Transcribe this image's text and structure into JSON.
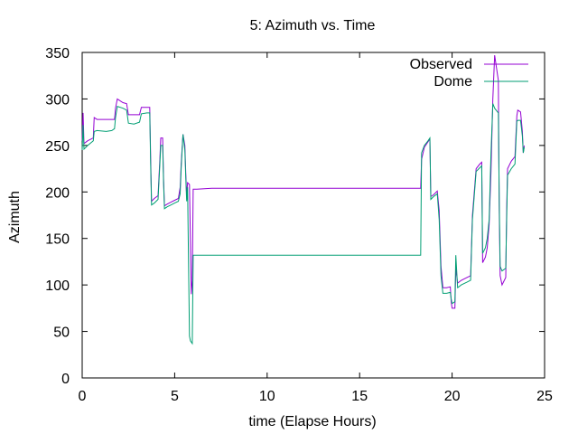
{
  "chart_data": {
    "type": "line",
    "title": "5: Azimuth vs. Time",
    "xlabel": "time (Elapse Hours)",
    "ylabel": "Azimuth",
    "xlim": [
      0,
      25
    ],
    "ylim": [
      0,
      350
    ],
    "xticks": [
      0,
      5,
      10,
      15,
      20,
      25
    ],
    "yticks": [
      0,
      50,
      100,
      150,
      200,
      250,
      300,
      350
    ],
    "grid": false,
    "legend_position": "top-right",
    "series": [
      {
        "name": "Observed",
        "color": "#9400d3",
        "points": [
          [
            0.0,
            255
          ],
          [
            0.05,
            285
          ],
          [
            0.1,
            252
          ],
          [
            0.3,
            255
          ],
          [
            0.6,
            258
          ],
          [
            0.65,
            280
          ],
          [
            0.8,
            278
          ],
          [
            1.3,
            278
          ],
          [
            1.6,
            278
          ],
          [
            1.75,
            278
          ],
          [
            1.8,
            290
          ],
          [
            1.9,
            300
          ],
          [
            2.2,
            296
          ],
          [
            2.4,
            295
          ],
          [
            2.5,
            283
          ],
          [
            2.8,
            283
          ],
          [
            3.1,
            283
          ],
          [
            3.2,
            291
          ],
          [
            3.5,
            291
          ],
          [
            3.65,
            291
          ],
          [
            3.7,
            237
          ],
          [
            3.75,
            190
          ],
          [
            3.9,
            193
          ],
          [
            4.1,
            196
          ],
          [
            4.2,
            235
          ],
          [
            4.25,
            258
          ],
          [
            4.35,
            258
          ],
          [
            4.4,
            215
          ],
          [
            4.45,
            185
          ],
          [
            4.6,
            187
          ],
          [
            4.8,
            189
          ],
          [
            5.0,
            191
          ],
          [
            5.2,
            193
          ],
          [
            5.3,
            205
          ],
          [
            5.35,
            230
          ],
          [
            5.45,
            262
          ],
          [
            5.55,
            250
          ],
          [
            5.6,
            220
          ],
          [
            5.65,
            195
          ],
          [
            5.7,
            210
          ],
          [
            5.8,
            208
          ],
          [
            5.85,
            150
          ],
          [
            5.9,
            90
          ],
          [
            5.95,
            105
          ],
          [
            6.0,
            203
          ],
          [
            6.2,
            203
          ],
          [
            7.0,
            204
          ],
          [
            10.0,
            204
          ],
          [
            15.0,
            204
          ],
          [
            18.3,
            204
          ],
          [
            18.35,
            235
          ],
          [
            18.5,
            248
          ],
          [
            18.7,
            254
          ],
          [
            18.8,
            257
          ],
          [
            18.85,
            195
          ],
          [
            19.0,
            197
          ],
          [
            19.2,
            201
          ],
          [
            19.3,
            180
          ],
          [
            19.4,
            120
          ],
          [
            19.5,
            97
          ],
          [
            19.7,
            97
          ],
          [
            19.9,
            98
          ],
          [
            19.95,
            82
          ],
          [
            20.0,
            75
          ],
          [
            20.15,
            75
          ],
          [
            20.2,
            118
          ],
          [
            20.3,
            102
          ],
          [
            20.5,
            105
          ],
          [
            20.8,
            108
          ],
          [
            21.0,
            110
          ],
          [
            21.1,
            175
          ],
          [
            21.3,
            225
          ],
          [
            21.5,
            230
          ],
          [
            21.6,
            232
          ],
          [
            21.65,
            124
          ],
          [
            21.8,
            130
          ],
          [
            21.9,
            140
          ],
          [
            22.0,
            165
          ],
          [
            22.1,
            220
          ],
          [
            22.2,
            300
          ],
          [
            22.3,
            347
          ],
          [
            22.5,
            320
          ],
          [
            22.55,
            180
          ],
          [
            22.6,
            110
          ],
          [
            22.7,
            100
          ],
          [
            22.9,
            108
          ],
          [
            22.95,
            180
          ],
          [
            23.0,
            225
          ],
          [
            23.2,
            233
          ],
          [
            23.4,
            238
          ],
          [
            23.5,
            282
          ],
          [
            23.55,
            288
          ],
          [
            23.7,
            286
          ],
          [
            23.8,
            265
          ],
          [
            23.85,
            242
          ],
          [
            23.9,
            250
          ]
        ]
      },
      {
        "name": "Dome",
        "color": "#009e73",
        "points": [
          [
            0.0,
            245
          ],
          [
            0.05,
            272
          ],
          [
            0.1,
            246
          ],
          [
            0.3,
            250
          ],
          [
            0.6,
            255
          ],
          [
            0.65,
            265
          ],
          [
            0.8,
            266
          ],
          [
            1.3,
            265
          ],
          [
            1.6,
            266
          ],
          [
            1.75,
            268
          ],
          [
            1.8,
            280
          ],
          [
            1.9,
            292
          ],
          [
            2.2,
            290
          ],
          [
            2.4,
            288
          ],
          [
            2.5,
            274
          ],
          [
            2.8,
            273
          ],
          [
            3.1,
            275
          ],
          [
            3.2,
            284
          ],
          [
            3.5,
            285
          ],
          [
            3.65,
            285
          ],
          [
            3.7,
            230
          ],
          [
            3.75,
            186
          ],
          [
            3.9,
            188
          ],
          [
            4.1,
            192
          ],
          [
            4.2,
            230
          ],
          [
            4.25,
            250
          ],
          [
            4.35,
            250
          ],
          [
            4.4,
            210
          ],
          [
            4.45,
            182
          ],
          [
            4.6,
            184
          ],
          [
            4.8,
            186
          ],
          [
            5.0,
            188
          ],
          [
            5.2,
            190
          ],
          [
            5.3,
            198
          ],
          [
            5.35,
            225
          ],
          [
            5.45,
            262
          ],
          [
            5.55,
            245
          ],
          [
            5.6,
            215
          ],
          [
            5.65,
            190
          ],
          [
            5.7,
            205
          ],
          [
            5.8,
            45
          ],
          [
            5.85,
            40
          ],
          [
            5.95,
            37
          ],
          [
            6.0,
            132
          ],
          [
            6.2,
            132
          ],
          [
            7.0,
            132
          ],
          [
            10.0,
            132
          ],
          [
            15.0,
            132
          ],
          [
            18.3,
            132
          ],
          [
            18.35,
            242
          ],
          [
            18.5,
            250
          ],
          [
            18.7,
            255
          ],
          [
            18.8,
            258
          ],
          [
            18.85,
            192
          ],
          [
            19.0,
            195
          ],
          [
            19.2,
            198
          ],
          [
            19.3,
            170
          ],
          [
            19.4,
            110
          ],
          [
            19.5,
            91
          ],
          [
            19.7,
            91
          ],
          [
            19.9,
            92
          ],
          [
            19.95,
            85
          ],
          [
            20.0,
            80
          ],
          [
            20.15,
            82
          ],
          [
            20.2,
            132
          ],
          [
            20.3,
            97
          ],
          [
            20.5,
            100
          ],
          [
            20.8,
            103
          ],
          [
            21.0,
            105
          ],
          [
            21.1,
            170
          ],
          [
            21.3,
            222
          ],
          [
            21.5,
            226
          ],
          [
            21.6,
            228
          ],
          [
            21.65,
            134
          ],
          [
            21.8,
            140
          ],
          [
            21.9,
            150
          ],
          [
            22.0,
            170
          ],
          [
            22.1,
            240
          ],
          [
            22.2,
            295
          ],
          [
            22.3,
            290
          ],
          [
            22.5,
            285
          ],
          [
            22.55,
            190
          ],
          [
            22.6,
            120
          ],
          [
            22.7,
            115
          ],
          [
            22.9,
            118
          ],
          [
            22.95,
            170
          ],
          [
            23.0,
            218
          ],
          [
            23.2,
            225
          ],
          [
            23.4,
            230
          ],
          [
            23.5,
            276
          ],
          [
            23.55,
            277
          ],
          [
            23.7,
            277
          ],
          [
            23.8,
            260
          ],
          [
            23.85,
            242
          ],
          [
            23.9,
            248
          ]
        ]
      }
    ]
  }
}
